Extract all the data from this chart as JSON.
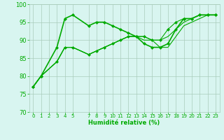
{
  "bg_color": "#d8f5f0",
  "grid_color": "#aaccbb",
  "line_color": "#00aa00",
  "marker_color": "#00aa00",
  "xlabel": "Humidité relative (%)",
  "ylim": [
    70,
    100
  ],
  "xlim": [
    -0.5,
    23.5
  ],
  "yticks": [
    70,
    75,
    80,
    85,
    90,
    95,
    100
  ],
  "xticks": [
    0,
    1,
    2,
    3,
    4,
    5,
    7,
    8,
    9,
    10,
    11,
    12,
    13,
    14,
    15,
    16,
    17,
    18,
    19,
    20,
    21,
    22,
    23
  ],
  "series": [
    {
      "x": [
        0,
        1,
        3,
        4,
        5,
        7,
        8,
        9,
        10,
        11,
        12,
        13,
        14,
        15,
        16,
        17,
        18,
        19,
        20,
        21,
        22,
        23
      ],
      "y": [
        77,
        80,
        88,
        96,
        97,
        94,
        95,
        95,
        94,
        93,
        92,
        91,
        89,
        88,
        88,
        89,
        93,
        96,
        96,
        97,
        97,
        97
      ],
      "lw": 1.2,
      "marker": "D",
      "ms": 2.0
    },
    {
      "x": [
        0,
        1,
        3,
        4,
        5,
        7,
        8,
        9,
        10,
        11,
        12,
        13,
        14,
        15,
        16,
        17,
        18,
        19,
        20,
        21,
        22,
        23
      ],
      "y": [
        77,
        80,
        84,
        88,
        88,
        86,
        87,
        88,
        89,
        90,
        91,
        91,
        90,
        90,
        88,
        88,
        91,
        94,
        95,
        96,
        97,
        97
      ],
      "lw": 0.8,
      "marker": null,
      "ms": 0
    },
    {
      "x": [
        0,
        1,
        3,
        4,
        5,
        7,
        8,
        9,
        10,
        11,
        12,
        13,
        14,
        15,
        16,
        17,
        18,
        19,
        20,
        21,
        22,
        23
      ],
      "y": [
        77,
        80,
        84,
        88,
        88,
        86,
        87,
        88,
        89,
        90,
        91,
        91,
        91,
        90,
        90,
        91,
        93,
        95,
        96,
        97,
        97,
        97
      ],
      "lw": 0.8,
      "marker": null,
      "ms": 0
    },
    {
      "x": [
        0,
        1,
        3,
        4,
        5,
        7,
        8,
        9,
        10,
        11,
        12,
        13,
        14,
        15,
        16,
        17,
        18,
        19,
        20,
        21,
        22,
        23
      ],
      "y": [
        77,
        80,
        84,
        88,
        88,
        86,
        87,
        88,
        89,
        90,
        91,
        91,
        91,
        90,
        90,
        93,
        95,
        96,
        96,
        97,
        97,
        97
      ],
      "lw": 0.8,
      "marker": "D",
      "ms": 2.0
    }
  ]
}
